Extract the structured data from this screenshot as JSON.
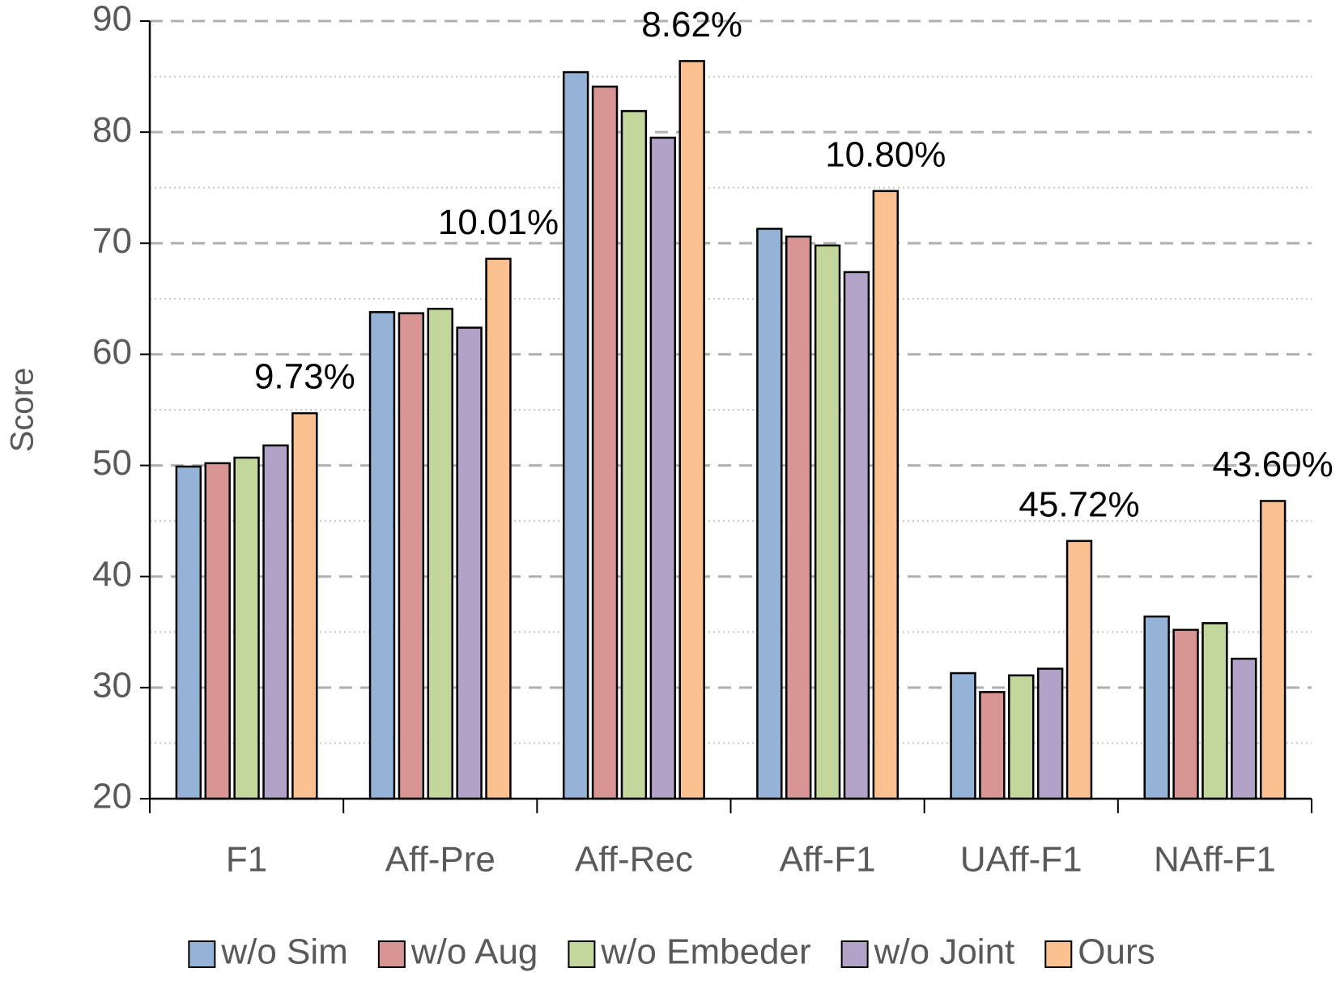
{
  "chart_data": {
    "type": "bar",
    "y_label": "Score",
    "categories": [
      "F1",
      "Aff-Pre",
      "Aff-Rec",
      "Aff-F1",
      "UAff-F1",
      "NAff-F1"
    ],
    "series": [
      {
        "name": "w/o Sim",
        "color": "#95b3d7",
        "values": [
          49.9,
          63.8,
          85.4,
          71.3,
          31.3,
          36.4
        ]
      },
      {
        "name": "w/o Aug",
        "color": "#d99594",
        "values": [
          50.2,
          63.7,
          84.1,
          70.6,
          29.6,
          35.2
        ]
      },
      {
        "name": "w/o Embeder",
        "color": "#c3d69b",
        "values": [
          50.7,
          64.1,
          81.9,
          69.8,
          31.1,
          35.8
        ]
      },
      {
        "name": "w/o Joint",
        "color": "#b3a2c7",
        "values": [
          51.8,
          62.4,
          79.5,
          67.4,
          31.7,
          32.6
        ]
      },
      {
        "name": "Ours",
        "color": "#fac08f",
        "values": [
          54.7,
          68.6,
          86.4,
          74.7,
          43.2,
          46.8
        ]
      }
    ],
    "annotations": [
      "9.73%",
      "10.01%",
      "8.62%",
      "10.80%",
      "45.72%",
      "43.60%"
    ],
    "ylim": [
      20,
      90
    ],
    "yticks": [
      20,
      30,
      40,
      50,
      60,
      70,
      80,
      90
    ],
    "minor_yticks": [
      25,
      35,
      45,
      55,
      65,
      75,
      85
    ],
    "grid": true,
    "legend": "bottom"
  }
}
